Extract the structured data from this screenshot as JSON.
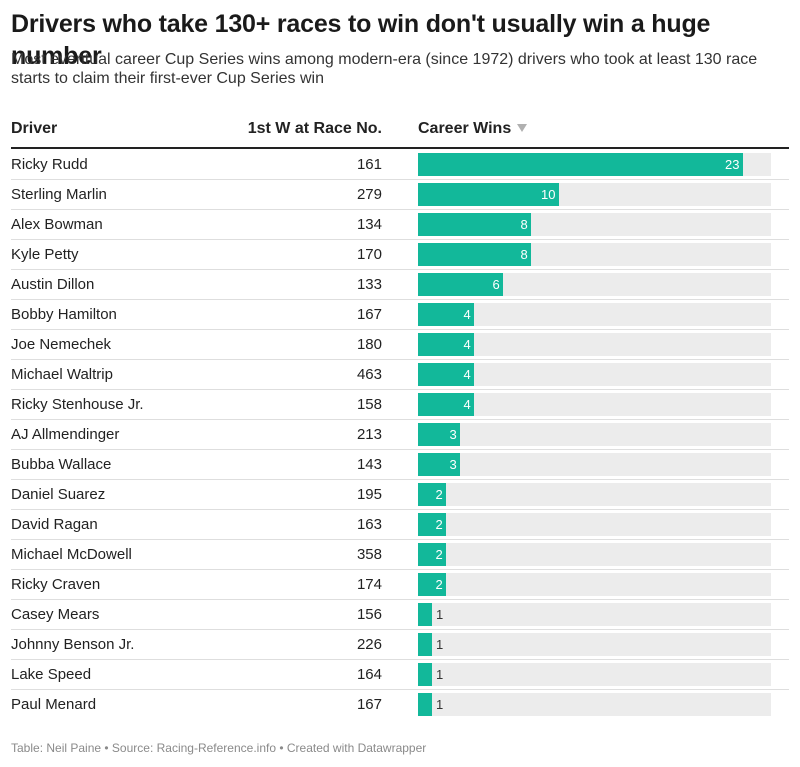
{
  "title": "Drivers who take 130+ races to win don't usually win a huge number",
  "subtitle": "Most eventual career Cup Series wins among modern-era (since 1972) drivers who took at least 130 race starts to claim their first-ever Cup Series win",
  "table": {
    "columns": {
      "driver": "Driver",
      "first_win_race": "1st W at Race No.",
      "career_wins": "Career Wins"
    }
  },
  "colors": {
    "bar": "#12b89a",
    "track": "#ececec",
    "label_inside": "#ffffff",
    "label_outside": "#333333"
  },
  "chart_data": {
    "type": "table",
    "title": "Drivers who take 130+ races to win don't usually win a huge number",
    "bar_column": "Career Wins",
    "sorted_by": "Career Wins (descending)",
    "max_value": 25,
    "rows": [
      {
        "driver": "Ricky Rudd",
        "first_win_race": 161,
        "career_wins": 23
      },
      {
        "driver": "Sterling Marlin",
        "first_win_race": 279,
        "career_wins": 10
      },
      {
        "driver": "Alex Bowman",
        "first_win_race": 134,
        "career_wins": 8
      },
      {
        "driver": "Kyle Petty",
        "first_win_race": 170,
        "career_wins": 8
      },
      {
        "driver": "Austin Dillon",
        "first_win_race": 133,
        "career_wins": 6
      },
      {
        "driver": "Bobby Hamilton",
        "first_win_race": 167,
        "career_wins": 4
      },
      {
        "driver": "Joe Nemechek",
        "first_win_race": 180,
        "career_wins": 4
      },
      {
        "driver": "Michael Waltrip",
        "first_win_race": 463,
        "career_wins": 4
      },
      {
        "driver": "Ricky Stenhouse Jr.",
        "first_win_race": 158,
        "career_wins": 4
      },
      {
        "driver": "AJ Allmendinger",
        "first_win_race": 213,
        "career_wins": 3
      },
      {
        "driver": "Bubba Wallace",
        "first_win_race": 143,
        "career_wins": 3
      },
      {
        "driver": "Daniel Suarez",
        "first_win_race": 195,
        "career_wins": 2
      },
      {
        "driver": "David Ragan",
        "first_win_race": 163,
        "career_wins": 2
      },
      {
        "driver": "Michael McDowell",
        "first_win_race": 358,
        "career_wins": 2
      },
      {
        "driver": "Ricky Craven",
        "first_win_race": 174,
        "career_wins": 2
      },
      {
        "driver": "Casey Mears",
        "first_win_race": 156,
        "career_wins": 1
      },
      {
        "driver": "Johnny Benson Jr.",
        "first_win_race": 226,
        "career_wins": 1
      },
      {
        "driver": "Lake Speed",
        "first_win_race": 164,
        "career_wins": 1
      },
      {
        "driver": "Paul Menard",
        "first_win_race": 167,
        "career_wins": 1
      }
    ]
  },
  "footer": "Table: Neil Paine • Source: Racing-Reference.info • Created with Datawrapper"
}
